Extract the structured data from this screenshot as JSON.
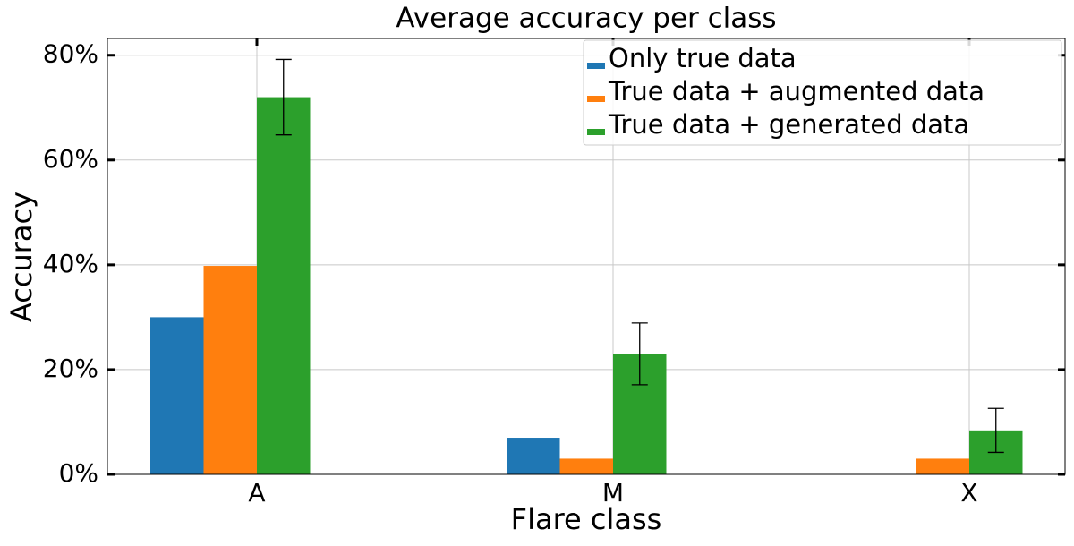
{
  "chart_data": {
    "type": "bar",
    "title": "Average accuracy per class",
    "x_label": "Flare class",
    "y_label": "Accuracy",
    "categories": [
      "A",
      "M",
      "X"
    ],
    "series": [
      {
        "name": "Only true data",
        "color": "#1f77b4",
        "values": [
          30,
          7,
          0
        ]
      },
      {
        "name": "True data + augmented data",
        "color": "#ff7f0e",
        "values": [
          39.8,
          3,
          3
        ]
      },
      {
        "name": "True data + generated data",
        "color": "#2ca02c",
        "values": [
          72,
          23,
          8.4
        ],
        "errors": [
          7.2,
          5.9,
          4.2
        ]
      }
    ],
    "ylim": [
      0,
      83.2
    ],
    "yticks": [
      {
        "value": 0,
        "label": "0%"
      },
      {
        "value": 20,
        "label": "20%"
      },
      {
        "value": 40,
        "label": "40%"
      },
      {
        "value": 60,
        "label": "60%"
      },
      {
        "value": 80,
        "label": "80%"
      }
    ],
    "grid": true,
    "legend": "upper right"
  }
}
